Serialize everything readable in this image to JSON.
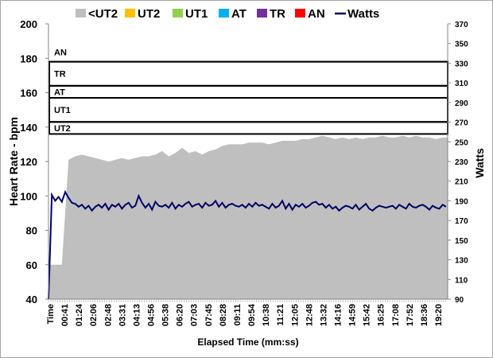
{
  "chart_data": {
    "type": "area",
    "title": "",
    "xlabel": "Elapsed Time (mm:ss)",
    "ylabel": "Heart Rate - bpm",
    "y2label": "Watts",
    "xlim_seconds": [
      0,
      1195
    ],
    "ylim": [
      40,
      200
    ],
    "y2lim": [
      90,
      370
    ],
    "yticks": [
      40,
      60,
      80,
      100,
      120,
      140,
      160,
      180,
      200
    ],
    "y2ticks": [
      90,
      110,
      130,
      150,
      170,
      190,
      210,
      230,
      250,
      270,
      290,
      310,
      330,
      350,
      370
    ],
    "xtick_labels": [
      "Time",
      "00:41",
      "01:24",
      "02:06",
      "02:48",
      "03:31",
      "04:13",
      "04:56",
      "05:38",
      "06:20",
      "07:03",
      "07:45",
      "08:28",
      "09:11",
      "09:54",
      "10:38",
      "11:21",
      "12:05",
      "12:48",
      "13:32",
      "14:16",
      "14:59",
      "15:42",
      "16:25",
      "17:08",
      "17:52",
      "18:36",
      "19:20"
    ],
    "legend": {
      "placement": "top",
      "entries": [
        {
          "label": "<UT2",
          "color": "#bfbfbf",
          "kind": "box"
        },
        {
          "label": "UT2",
          "color": "#ffc000",
          "kind": "box"
        },
        {
          "label": "UT1",
          "color": "#92d050",
          "kind": "box"
        },
        {
          "label": "AT",
          "color": "#00b0f0",
          "kind": "box"
        },
        {
          "label": "TR",
          "color": "#7030a0",
          "kind": "box"
        },
        {
          "label": "AN",
          "color": "#ff0000",
          "kind": "box"
        },
        {
          "label": "Watts",
          "color": "#000066",
          "kind": "line"
        }
      ]
    },
    "zones": [
      {
        "label": "UT2",
        "from": 136,
        "to": 143
      },
      {
        "label": "UT1",
        "from": 143,
        "to": 157
      },
      {
        "label": "AT",
        "from": 157,
        "to": 164
      },
      {
        "label": "TR",
        "from": 164,
        "to": 178
      },
      {
        "label": "AN",
        "from": 178,
        "to": 200
      }
    ],
    "series": [
      {
        "name": "Heart Rate (<UT2)",
        "axis": "left",
        "x_step_seconds": 20,
        "values": [
          60,
          60,
          60,
          121,
          123,
          124,
          123,
          122,
          121,
          120,
          121,
          122,
          121,
          122,
          123,
          123,
          124,
          126,
          123,
          125,
          128,
          125,
          126,
          124,
          126,
          127,
          129,
          130,
          130,
          130,
          131,
          131,
          131,
          130,
          131,
          132,
          132,
          132,
          133,
          133,
          134,
          135,
          134,
          133,
          134,
          133,
          134,
          133,
          134,
          134,
          135,
          134,
          134,
          135,
          134,
          135,
          134,
          134,
          133,
          134
        ]
      },
      {
        "name": "Watts",
        "axis": "right",
        "x_step_seconds": 10,
        "values": [
          90,
          196,
          190,
          194,
          189,
          199,
          193,
          188,
          187,
          184,
          186,
          182,
          185,
          180,
          184,
          186,
          183,
          187,
          181,
          186,
          184,
          187,
          182,
          186,
          188,
          183,
          185,
          195,
          188,
          183,
          187,
          181,
          189,
          185,
          184,
          186,
          183,
          188,
          182,
          186,
          184,
          187,
          189,
          184,
          186,
          187,
          183,
          188,
          185,
          186,
          190,
          184,
          188,
          183,
          186,
          187,
          185,
          184,
          186,
          183,
          187,
          184,
          188,
          185,
          186,
          184,
          182,
          187,
          183,
          185,
          190,
          182,
          187,
          181,
          186,
          184,
          187,
          183,
          185,
          188,
          189,
          186,
          187,
          183,
          186,
          182,
          184,
          180,
          183,
          185,
          184,
          182,
          186,
          181,
          184,
          187,
          182,
          180,
          183,
          185,
          184,
          183,
          184,
          185,
          182,
          186,
          184,
          182,
          187,
          184,
          183,
          185,
          186,
          184,
          181,
          185,
          183,
          182,
          186,
          184
        ]
      }
    ]
  }
}
